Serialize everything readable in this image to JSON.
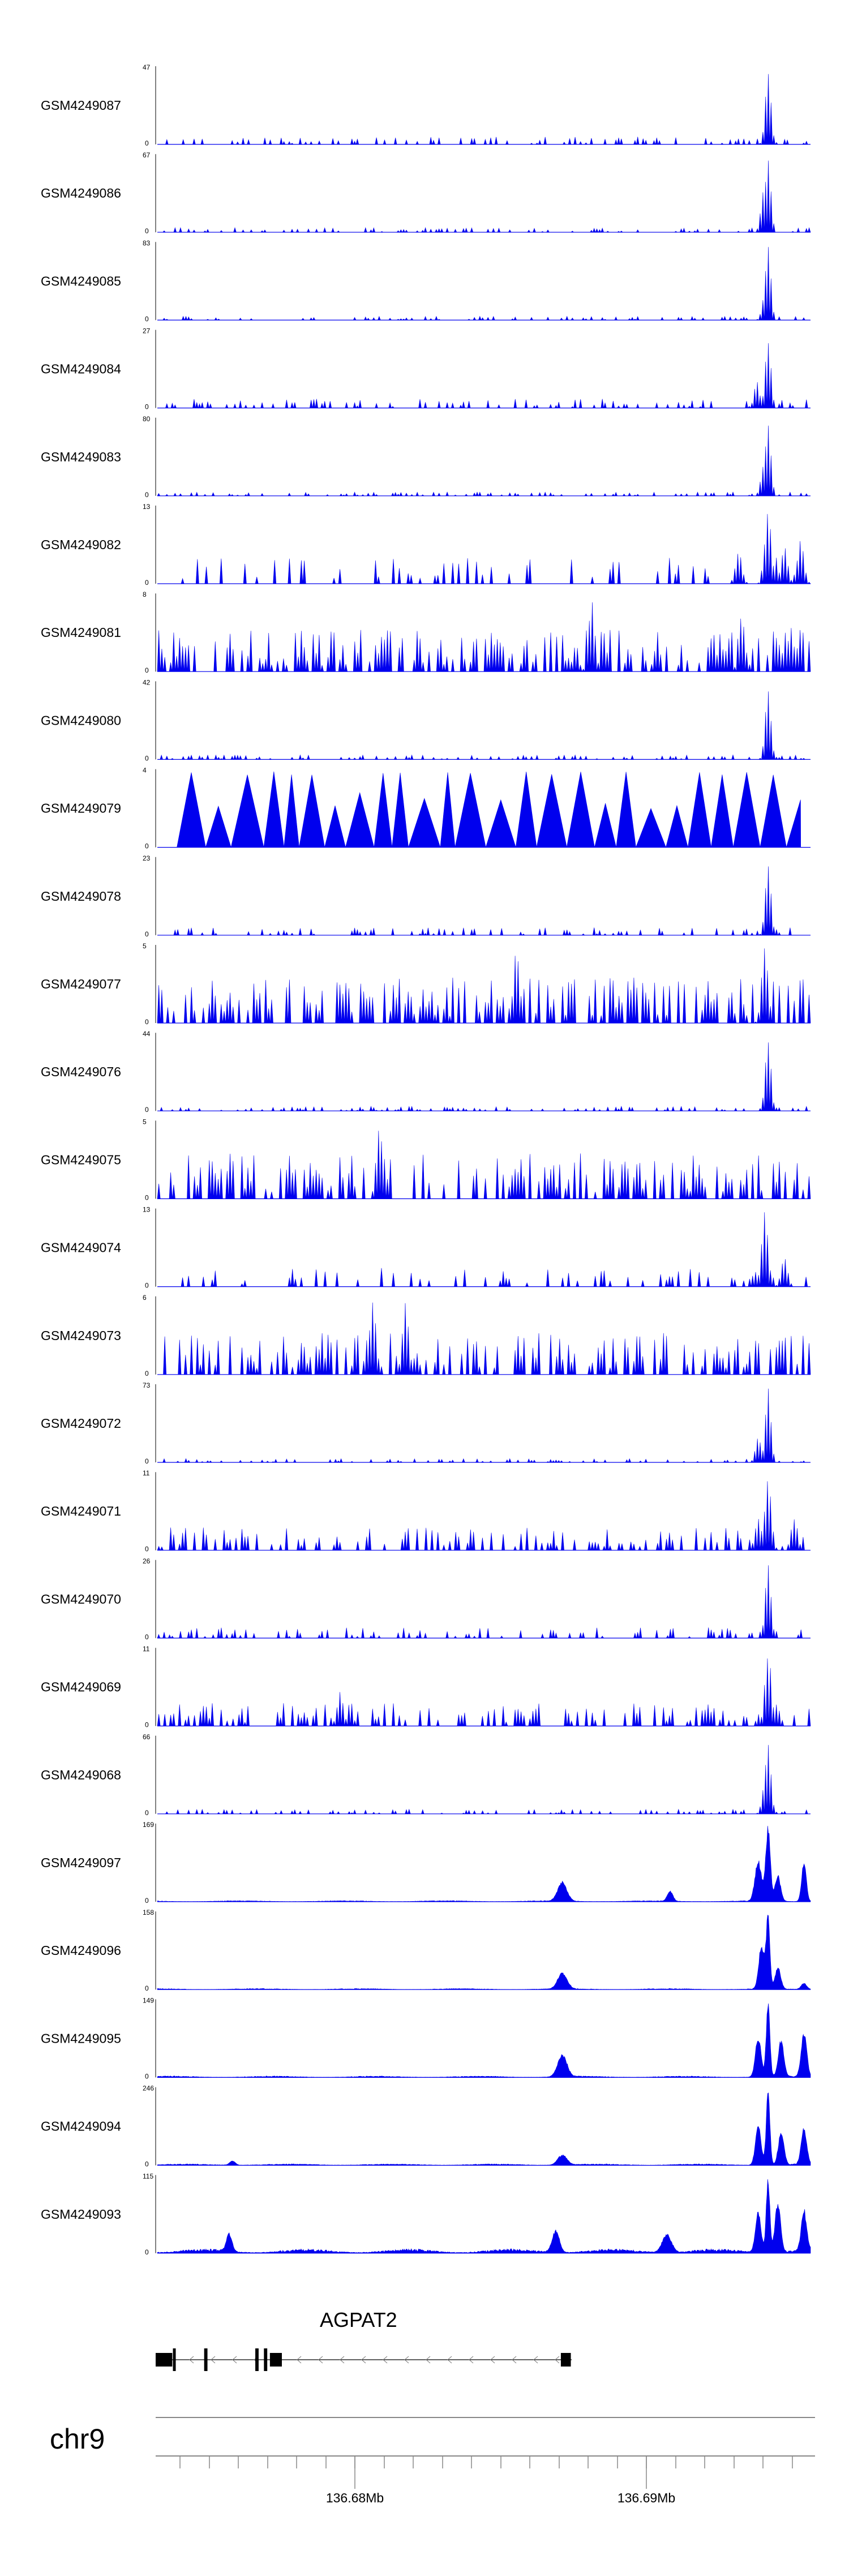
{
  "colors": {
    "signal": "#0000ee",
    "axis": "#000000",
    "baseline": "#000000"
  },
  "chart_data": {
    "type": "area",
    "description_free": true,
    "tracks": [
      {
        "name": "GSM4249087",
        "max": 47,
        "min": 0,
        "kind": "peaky",
        "seed": 87,
        "noise": 0.1,
        "peaks": [
          [
            0.935,
            1.0
          ]
        ]
      },
      {
        "name": "GSM4249086",
        "max": 67,
        "min": 0,
        "kind": "peaky",
        "seed": 86,
        "noise": 0.06,
        "peaks": [
          [
            0.928,
            0.55
          ],
          [
            0.935,
            1.0
          ]
        ]
      },
      {
        "name": "GSM4249085",
        "max": 83,
        "min": 0,
        "kind": "peaky",
        "seed": 85,
        "noise": 0.05,
        "peaks": [
          [
            0.93,
            0.35
          ],
          [
            0.935,
            1.0
          ]
        ]
      },
      {
        "name": "GSM4249084",
        "max": 27,
        "min": 0,
        "kind": "peaky",
        "seed": 84,
        "noise": 0.12,
        "peaks": [
          [
            0.918,
            0.35
          ],
          [
            0.935,
            0.95
          ]
        ]
      },
      {
        "name": "GSM4249083",
        "max": 80,
        "min": 0,
        "kind": "peaky",
        "seed": 83,
        "noise": 0.05,
        "peaks": [
          [
            0.928,
            0.4
          ],
          [
            0.935,
            1.0
          ]
        ]
      },
      {
        "name": "GSM4249082",
        "max": 13,
        "min": 0,
        "kind": "spiky",
        "seed": 82,
        "density": 0.25,
        "scale": 0.35,
        "peaks": [
          [
            0.89,
            0.45
          ],
          [
            0.935,
            1.0
          ],
          [
            0.96,
            0.5
          ],
          [
            0.985,
            0.6
          ]
        ]
      },
      {
        "name": "GSM4249081",
        "max": 8,
        "min": 0,
        "kind": "spiky",
        "seed": 81,
        "density": 0.65,
        "scale": 0.55,
        "peaks": [
          [
            0.665,
            0.95
          ],
          [
            0.895,
            0.75
          ],
          [
            0.97,
            0.6
          ]
        ]
      },
      {
        "name": "GSM4249080",
        "max": 42,
        "min": 0,
        "kind": "peaky",
        "seed": 80,
        "noise": 0.06,
        "peaks": [
          [
            0.935,
            1.0
          ]
        ]
      },
      {
        "name": "GSM4249079",
        "max": 4,
        "min": 0,
        "kind": "triangles",
        "seed": 79,
        "count": 26,
        "start": 0.03
      },
      {
        "name": "GSM4249078",
        "max": 23,
        "min": 0,
        "kind": "peaky",
        "seed": 78,
        "noise": 0.1,
        "peaks": [
          [
            0.935,
            1.0
          ]
        ]
      },
      {
        "name": "GSM4249077",
        "max": 5,
        "min": 0,
        "kind": "spiky",
        "seed": 77,
        "density": 0.6,
        "scale": 0.6,
        "peaks": [
          [
            0.55,
            1.0
          ],
          [
            0.93,
            1.0
          ]
        ]
      },
      {
        "name": "GSM4249076",
        "max": 44,
        "min": 0,
        "kind": "peaky",
        "seed": 76,
        "noise": 0.06,
        "peaks": [
          [
            0.935,
            1.0
          ]
        ]
      },
      {
        "name": "GSM4249075",
        "max": 5,
        "min": 0,
        "kind": "spiky",
        "seed": 75,
        "density": 0.55,
        "scale": 0.6,
        "peaks": [
          [
            0.34,
            1.0
          ]
        ]
      },
      {
        "name": "GSM4249074",
        "max": 13,
        "min": 0,
        "kind": "spiky",
        "seed": 74,
        "density": 0.28,
        "scale": 0.25,
        "peaks": [
          [
            0.93,
            1.0
          ],
          [
            0.96,
            0.4
          ]
        ]
      },
      {
        "name": "GSM4249073",
        "max": 6,
        "min": 0,
        "kind": "spiky",
        "seed": 73,
        "density": 0.6,
        "scale": 0.55,
        "peaks": [
          [
            0.33,
            1.0
          ],
          [
            0.38,
            0.95
          ]
        ]
      },
      {
        "name": "GSM4249072",
        "max": 73,
        "min": 0,
        "kind": "peaky",
        "seed": 72,
        "noise": 0.05,
        "peaks": [
          [
            0.92,
            0.35
          ],
          [
            0.935,
            1.0
          ]
        ]
      },
      {
        "name": "GSM4249071",
        "max": 11,
        "min": 0,
        "kind": "spiky",
        "seed": 71,
        "density": 0.4,
        "scale": 0.3,
        "peaks": [
          [
            0.92,
            0.45
          ],
          [
            0.935,
            1.0
          ],
          [
            0.975,
            0.45
          ]
        ]
      },
      {
        "name": "GSM4249070",
        "max": 26,
        "min": 0,
        "kind": "peaky",
        "seed": 70,
        "noise": 0.14,
        "peaks": [
          [
            0.935,
            1.0
          ]
        ]
      },
      {
        "name": "GSM4249069",
        "max": 11,
        "min": 0,
        "kind": "spiky",
        "seed": 69,
        "density": 0.45,
        "scale": 0.3,
        "peaks": [
          [
            0.935,
            1.0
          ],
          [
            0.28,
            0.45
          ]
        ]
      },
      {
        "name": "GSM4249068",
        "max": 66,
        "min": 0,
        "kind": "peaky",
        "seed": 68,
        "noise": 0.06,
        "peaks": [
          [
            0.93,
            0.4
          ],
          [
            0.935,
            1.0
          ]
        ]
      },
      {
        "name": "GSM4249097",
        "max": 169,
        "min": 0,
        "kind": "smooth",
        "seed": 97,
        "noise": 0.015,
        "peaks": [
          [
            0.62,
            0.26,
            0.01
          ],
          [
            0.785,
            0.14,
            0.006
          ],
          [
            0.92,
            0.55,
            0.007
          ],
          [
            0.935,
            1.0,
            0.005
          ],
          [
            0.95,
            0.35,
            0.006
          ],
          [
            0.99,
            0.55,
            0.005
          ]
        ]
      },
      {
        "name": "GSM4249096",
        "max": 158,
        "min": 0,
        "kind": "smooth",
        "seed": 96,
        "noise": 0.015,
        "peaks": [
          [
            0.62,
            0.22,
            0.01
          ],
          [
            0.925,
            0.6,
            0.006
          ],
          [
            0.935,
            1.0,
            0.004
          ],
          [
            0.95,
            0.3,
            0.006
          ],
          [
            0.99,
            0.08,
            0.006
          ]
        ]
      },
      {
        "name": "GSM4249095",
        "max": 149,
        "min": 0,
        "kind": "smooth",
        "seed": 95,
        "noise": 0.02,
        "peaks": [
          [
            0.62,
            0.3,
            0.01
          ],
          [
            0.92,
            0.55,
            0.006
          ],
          [
            0.935,
            1.0,
            0.004
          ],
          [
            0.955,
            0.5,
            0.006
          ],
          [
            0.99,
            0.6,
            0.006
          ]
        ]
      },
      {
        "name": "GSM4249094",
        "max": 246,
        "min": 0,
        "kind": "smooth",
        "seed": 94,
        "noise": 0.02,
        "peaks": [
          [
            0.115,
            0.06,
            0.006
          ],
          [
            0.62,
            0.14,
            0.01
          ],
          [
            0.92,
            0.55,
            0.006
          ],
          [
            0.935,
            1.0,
            0.004
          ],
          [
            0.955,
            0.45,
            0.006
          ],
          [
            0.99,
            0.5,
            0.006
          ]
        ]
      },
      {
        "name": "GSM4249093",
        "max": 115,
        "min": 0,
        "kind": "smooth",
        "seed": 93,
        "noise": 0.06,
        "peaks": [
          [
            0.11,
            0.25,
            0.006
          ],
          [
            0.61,
            0.3,
            0.008
          ],
          [
            0.78,
            0.25,
            0.01
          ],
          [
            0.92,
            0.55,
            0.006
          ],
          [
            0.935,
            1.0,
            0.004
          ],
          [
            0.95,
            0.7,
            0.006
          ],
          [
            0.99,
            0.55,
            0.006
          ]
        ]
      }
    ],
    "gene": {
      "name": "AGPAT2",
      "strand": "-",
      "exons": [
        [
          0.0,
          0.025,
          "wide"
        ],
        [
          0.026,
          0.03,
          "thin"
        ],
        [
          0.073,
          0.078,
          "thin"
        ],
        [
          0.15,
          0.155,
          "thin"
        ],
        [
          0.163,
          0.168,
          "thin"
        ],
        [
          0.172,
          0.19,
          "wide"
        ],
        [
          0.61,
          0.625,
          "wide"
        ]
      ]
    },
    "chromosome": "chr9",
    "axis_ticks": [
      {
        "label": "136.68Mb",
        "labeled": true
      },
      {
        "label": "136.69Mb",
        "labeled": true
      }
    ]
  }
}
